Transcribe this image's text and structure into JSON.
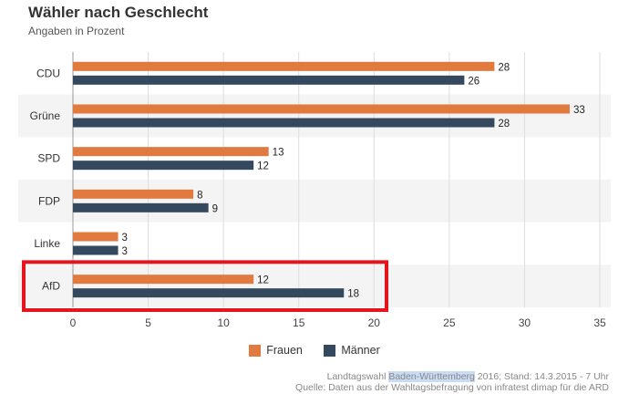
{
  "header": {
    "title": "Wähler nach Geschlecht",
    "subtitle": "Angaben in Prozent"
  },
  "colors": {
    "frauen": "#e07a3f",
    "maenner": "#34495e",
    "band": "#f4f4f4",
    "grid": "#dddddd",
    "highlight": "#e8141d"
  },
  "chart_data": {
    "type": "bar",
    "orientation": "horizontal",
    "categories": [
      "CDU",
      "Grüne",
      "SPD",
      "FDP",
      "Linke",
      "AfD"
    ],
    "series": [
      {
        "name": "Frauen",
        "values": [
          28,
          33,
          13,
          8,
          3,
          12
        ]
      },
      {
        "name": "Männer",
        "values": [
          26,
          28,
          12,
          9,
          3,
          18
        ]
      }
    ],
    "xlim": [
      0,
      35
    ],
    "xticks": [
      0,
      5,
      10,
      15,
      20,
      25,
      30,
      35
    ],
    "grid": true,
    "legend_position": "bottom",
    "highlighted_category": "AfD"
  },
  "legend": {
    "frauen_label": "Frauen",
    "maenner_label": "Männer"
  },
  "source": {
    "line1_prefix": "Landtagswahl ",
    "line1_highlight": "Baden-Württemberg",
    "line1_suffix": " 2016; Stand: 14.3.2015 - 7 Uhr",
    "line2": "Quelle: Daten aus der Wahltagsbefragung von infratest dimap für die ARD"
  }
}
